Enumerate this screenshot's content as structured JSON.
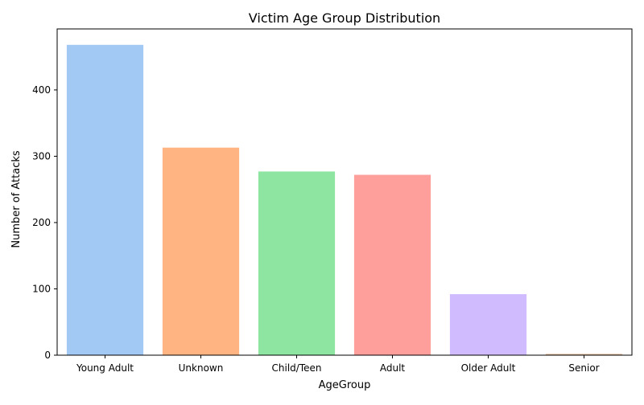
{
  "chart_data": {
    "type": "bar",
    "title": "Victim Age Group Distribution",
    "xlabel": "AgeGroup",
    "ylabel": "Number of Attacks",
    "categories": [
      "Young Adult",
      "Unknown",
      "Child/Teen",
      "Adult",
      "Older Adult",
      "Senior"
    ],
    "values": [
      468,
      313,
      277,
      272,
      92,
      2
    ],
    "colors": [
      "#a1c9f4",
      "#ffb482",
      "#8de5a1",
      "#ff9f9b",
      "#d0bbff",
      "#debb9b"
    ],
    "ylim": [
      0,
      492
    ],
    "yticks": [
      0,
      100,
      200,
      300,
      400
    ],
    "grid": false,
    "legend": "none"
  }
}
